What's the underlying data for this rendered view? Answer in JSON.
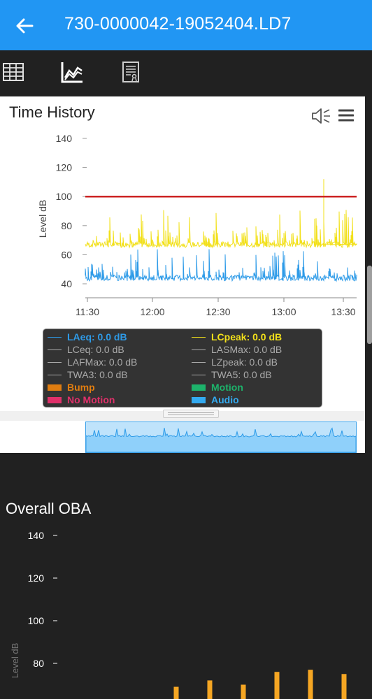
{
  "app": {
    "title": "730-0000042-19052404.LD7"
  },
  "icons": {
    "back": "arrow-left-icon",
    "table_view": "grid-table-icon",
    "chart_view": "line-chart-icon",
    "report_view": "report-icon",
    "audio": "speaker-icon",
    "menu": "hamburger-menu-icon"
  },
  "time_history": {
    "title": "Time History",
    "chart_data": {
      "type": "line",
      "ylabel": "Level dB",
      "y_ticks": [
        "140",
        "120",
        "100",
        "80",
        "60",
        "40"
      ],
      "x_ticks": [
        "11:30",
        "12:00",
        "12:30",
        "13:00",
        "13:30"
      ],
      "ylim": [
        35,
        145
      ],
      "series": [
        {
          "name": "LCpeak",
          "color": "#f2e01a",
          "baseline": 67,
          "range": [
            64,
            92
          ],
          "spike": 112
        },
        {
          "name": "LAeq",
          "color": "#2e9be8",
          "baseline": 44,
          "range": [
            42,
            64
          ]
        },
        {
          "name": "TWA5",
          "color": "#cc2222",
          "constant": 100
        }
      ]
    }
  },
  "legend": {
    "items": [
      {
        "label": "LAeq: 0.0 dB",
        "color": "#2e9be8",
        "kind": "line",
        "bold": true
      },
      {
        "label": "LCpeak: 0.0 dB",
        "color": "#f2e01a",
        "kind": "line",
        "bold": true
      },
      {
        "label": "LCeq: 0.0 dB",
        "color": "#aaaaaa",
        "kind": "line",
        "bold": false
      },
      {
        "label": "LASMax: 0.0 dB",
        "color": "#aaaaaa",
        "kind": "line",
        "bold": false
      },
      {
        "label": "LAFMax: 0.0 dB",
        "color": "#aaaaaa",
        "kind": "line",
        "bold": false
      },
      {
        "label": "LZpeak: 0.0 dB",
        "color": "#aaaaaa",
        "kind": "line",
        "bold": false
      },
      {
        "label": "TWA3: 0.0 dB",
        "color": "#aaaaaa",
        "kind": "line",
        "bold": false
      },
      {
        "label": "TWA5: 0.0 dB",
        "color": "#aaaaaa",
        "kind": "line",
        "bold": false
      },
      {
        "label": "Bump",
        "color": "#e07d10",
        "kind": "block",
        "bold": true
      },
      {
        "label": "Motion",
        "color": "#1db36b",
        "kind": "block",
        "bold": true
      },
      {
        "label": "No Motion",
        "color": "#e0306a",
        "kind": "block",
        "bold": true
      },
      {
        "label": "Audio",
        "color": "#33aaf0",
        "kind": "block",
        "bold": true
      }
    ]
  },
  "overall_oba": {
    "title": "Overall OBA",
    "chart_data": {
      "type": "bar",
      "ylabel": "Level dB",
      "y_ticks": [
        "140",
        "120",
        "100",
        "80"
      ],
      "ylim": [
        60,
        150
      ],
      "color": "#f5a623",
      "values": [
        62,
        61,
        61,
        69,
        72,
        70,
        76,
        77,
        75
      ]
    }
  }
}
